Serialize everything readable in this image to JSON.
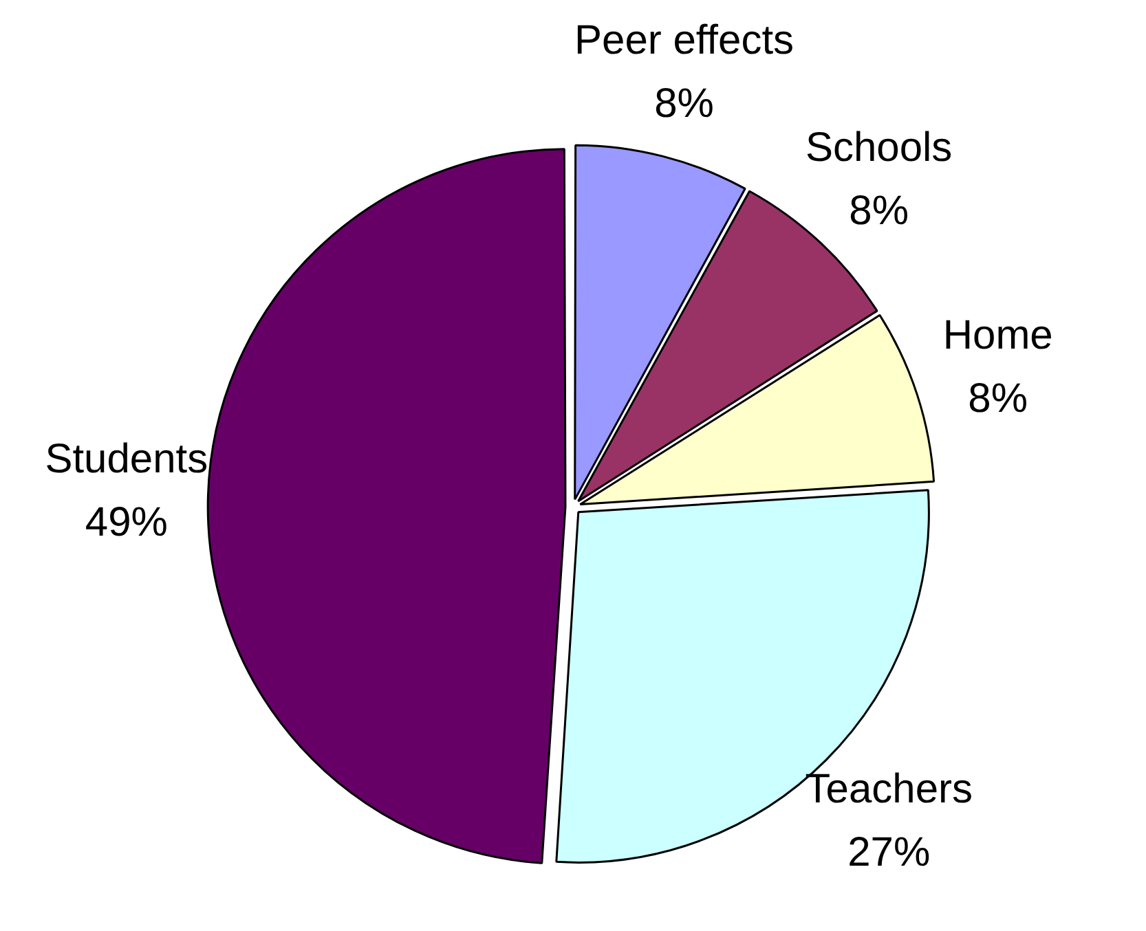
{
  "chart_data": {
    "type": "pie",
    "categories": [
      "Peer effects",
      "Schools",
      "Home",
      "Teachers",
      "Students"
    ],
    "values": [
      8,
      8,
      8,
      27,
      49
    ],
    "value_labels": [
      "8%",
      "8%",
      "8%",
      "27%",
      "49%"
    ],
    "colors": [
      "#9999ff",
      "#993366",
      "#ffffcc",
      "#ccffff",
      "#660066"
    ],
    "legend": false
  }
}
